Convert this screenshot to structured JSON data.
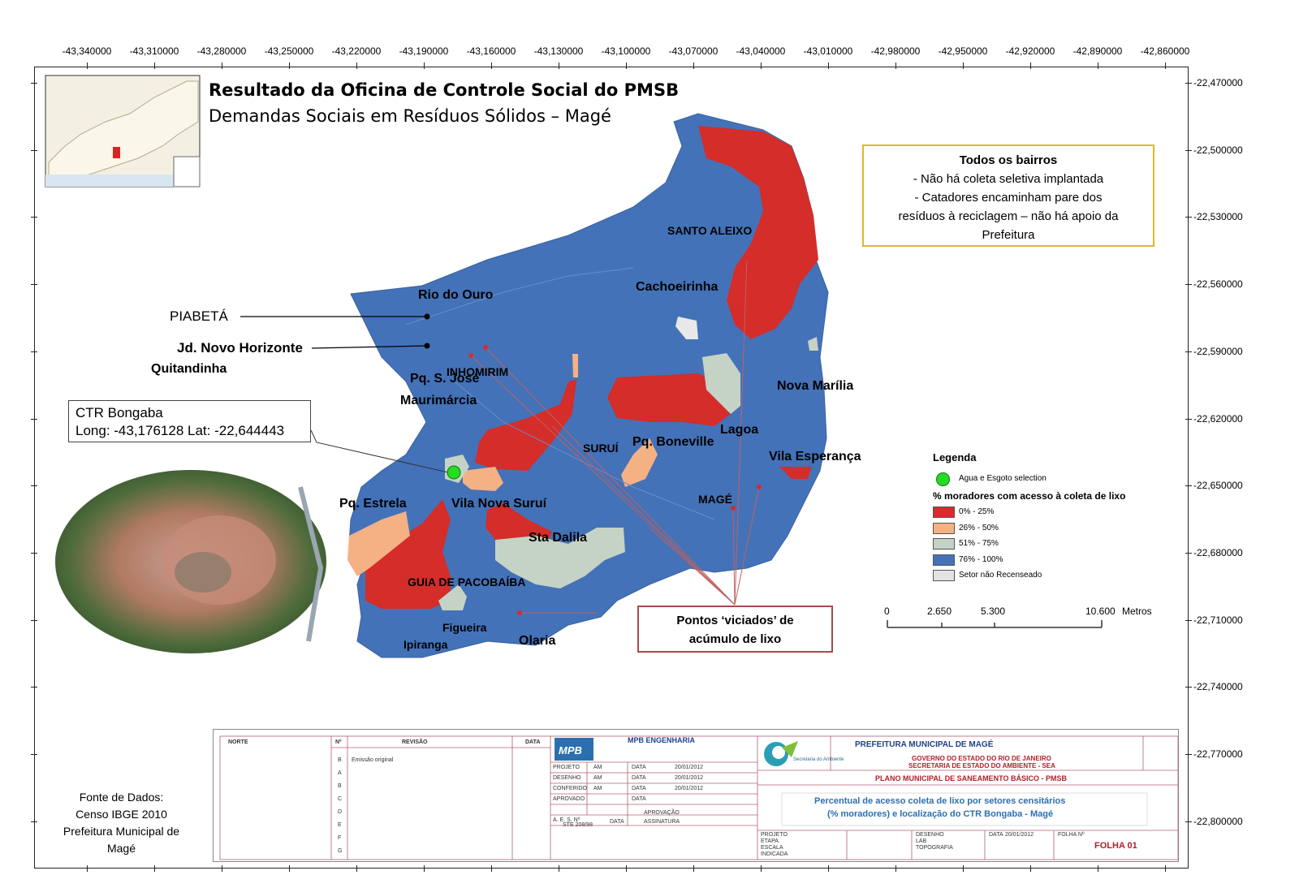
{
  "coords": {
    "longitudes": [
      "-43,340000",
      "-43,310000",
      "-43,280000",
      "-43,250000",
      "-43,220000",
      "-43,190000",
      "-43,160000",
      "-43,130000",
      "-43,100000",
      "-43,070000",
      "-43,040000",
      "-43,010000",
      "-42,980000",
      "-42,950000",
      "-42,920000",
      "-42,890000",
      "-42,860000"
    ],
    "latitudes": [
      "-22,470000",
      "-22,500000",
      "-22,530000",
      "-22,560000",
      "-22,590000",
      "-22,620000",
      "-22,650000",
      "-22,680000",
      "-22,710000",
      "-22,740000",
      "-22,770000",
      "-22,800000"
    ]
  },
  "title": {
    "line1": "Resultado da Oficina de Controle Social do PMSB",
    "line2": "Demandas Sociais em Resíduos Sólidos – Magé"
  },
  "info_box": {
    "heading": "Todos os bairros",
    "item1": "-   Não há coleta seletiva implantada",
    "item2": "-   Catadores encaminham pare dos",
    "item3": "resíduos à reciclagem – não há apoio da",
    "item4": "Prefeitura"
  },
  "places": {
    "santo_aleixo": "SANTO ALEIXO",
    "cachoeirinha": "Cachoeirinha",
    "rio_do_ouro": "Rio do Ouro",
    "piabeta": "PIABETÁ",
    "jd_novo_horizonte": "Jd. Novo Horizonte",
    "quitandinha": "Quitandinha",
    "inhomirim": "INHOMIRIM",
    "pq_s_jose": "Pq. S. José",
    "maurimarcia": "Maurimárcia",
    "nova_marilia": "Nova Marília",
    "lagoa": "Lagoa",
    "surui": "SURUÍ",
    "pq_boneville": "Pq. Boneville",
    "vila_esperanca": "Vila Esperança",
    "pq_estrela": "Pq. Estrela",
    "vila_nova_surui": "Vila Nova Suruí",
    "mage": "MAGÉ",
    "sta_dalila": "Sta Dalila",
    "guia_de_pacobaiba": "GUIA DE PACOBAÍBA",
    "figueira": "Figueira",
    "ipiranga": "Ipiranga",
    "olaria": "Olaria"
  },
  "ctr_callout": {
    "line1": "CTR Bongaba",
    "line2": "Long: -43,176128  Lat: -22,644443"
  },
  "pontos_box": {
    "line1": "Pontos ‘viciados’ de",
    "line2": "acúmulo  de lixo"
  },
  "legend": {
    "title": "Legenda",
    "point_label": "Agua e Esgoto selection",
    "subtitle": "% moradores com acesso à coleta de lixo",
    "classes": [
      {
        "label": "0% - 25%",
        "color": "#d42d2a"
      },
      {
        "label": "26% - 50%",
        "color": "#f4b183"
      },
      {
        "label": "51% - 75%",
        "color": "#c5d3c6"
      },
      {
        "label": "76% - 100%",
        "color": "#4472b8"
      },
      {
        "label": "Setor não Recenseado",
        "color": "#e3e3e3"
      }
    ]
  },
  "scale_bar": {
    "labels": [
      "0",
      "2.650",
      "5.300",
      "10.600"
    ],
    "unit": "Metros"
  },
  "source": {
    "line1": "Fonte de Dados:",
    "line2": "Censo IBGE 2010",
    "line3": "Prefeitura Municipal de",
    "line4": "Magé"
  },
  "title_block": {
    "norte": "NORTE",
    "n_col": "Nº",
    "revisao": "REVISÃO",
    "data": "DATA",
    "emissao": "Emissão original",
    "rev_letters": [
      "B",
      "A",
      "B",
      "C",
      "D",
      "E",
      "F",
      "G"
    ],
    "company": "MPB ENGENHARIA",
    "logo_text": "MPB",
    "rows": [
      {
        "label": "PROJETO",
        "who": "AM",
        "date": "20/01/2012"
      },
      {
        "label": "DESENHO",
        "who": "AM",
        "date": "20/01/2012"
      },
      {
        "label": "CONFERIDO",
        "who": "AM",
        "date": "20/01/2012"
      },
      {
        "label": "APROVADO",
        "who": "",
        "date": ""
      }
    ],
    "data_label": "DATA",
    "aes": "A. E. S. Nº",
    "aprovacao": "APROVAÇÃO",
    "assinatura": "ASSINATURA",
    "ste": "STE 208/98",
    "secretaria_logo": "Secretaria do Ambiente",
    "prefeitura": "PREFEITURA MUNICIPAL DE MAGÉ",
    "governo": "GOVERNO DO ESTADO DO RIO DE JANEIRO",
    "sea": "SECRETARIA DE ESTADO DO AMBIENTE - SEA",
    "plano": "PLANO MUNICIPAL DE SANEAMENTO BÁSICO - PMSB",
    "desc1": "Percentual de acesso coleta de lixo por setores censitários",
    "desc2": "(% moradores) e localização do CTR Bongaba - Magé",
    "projeto": "PROJETO",
    "etapa": "ETAPA",
    "escala": "ESCALA",
    "indicada": "INDICADA",
    "desenho": "DESENHO",
    "lab": "LAB",
    "topografia": "TOPOGRAFIA",
    "data_date": "20/01/2012",
    "folha_n": "FOLHA Nº",
    "folha": "FOLHA 01"
  }
}
